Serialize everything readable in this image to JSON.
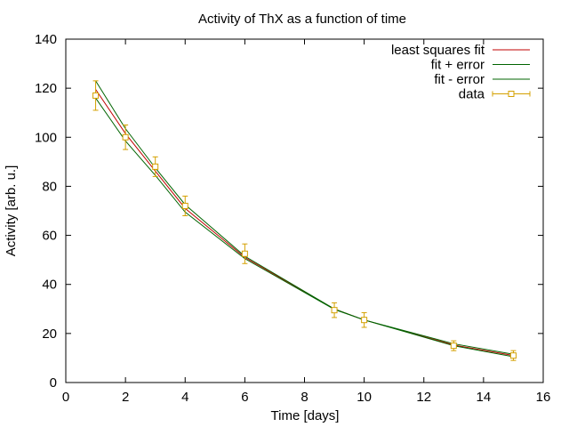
{
  "chart_data": {
    "type": "line",
    "title": "Activity of ThX as a function of time",
    "xlabel": "Time [days]",
    "ylabel": "Activity [arb. u.]",
    "xlim": [
      0,
      16
    ],
    "ylim": [
      0,
      140
    ],
    "x_ticks": [
      0,
      2,
      4,
      6,
      8,
      10,
      12,
      14,
      16
    ],
    "y_ticks": [
      0,
      20,
      40,
      60,
      80,
      100,
      120,
      140
    ],
    "grid": false,
    "legend_position": "top-right",
    "colors": {
      "fit": "#c00000",
      "error": "#006400",
      "data": "#d4a000"
    },
    "series": [
      {
        "name": "least squares fit",
        "kind": "line",
        "color": "#c00000",
        "x": [
          1,
          2,
          3,
          4,
          6,
          9,
          10,
          13,
          15
        ],
        "y": [
          119.5,
          101.5,
          86.2,
          71,
          51,
          30,
          25.5,
          15.3,
          11
        ]
      },
      {
        "name": "fit + error",
        "kind": "line",
        "color": "#006400",
        "x": [
          1,
          2,
          3,
          4,
          6,
          9,
          10,
          13,
          15
        ],
        "y": [
          123,
          103.5,
          87.5,
          72.5,
          51.5,
          30,
          25.5,
          15.8,
          11.5
        ]
      },
      {
        "name": "fit - error",
        "kind": "line",
        "color": "#006400",
        "x": [
          1,
          2,
          3,
          4,
          6,
          9,
          10,
          13,
          15
        ],
        "y": [
          116,
          98.5,
          84.5,
          69.5,
          50.5,
          29.8,
          25.5,
          15,
          10.5
        ]
      },
      {
        "name": "data",
        "kind": "points-errorbars",
        "color": "#d4a000",
        "x": [
          1,
          2,
          3,
          4,
          6,
          9,
          10,
          13,
          15
        ],
        "y": [
          117,
          100,
          88,
          72,
          52.5,
          29.5,
          25.5,
          15,
          11
        ],
        "err": [
          6,
          5,
          4,
          4,
          4,
          3,
          3,
          2,
          2
        ]
      }
    ]
  }
}
